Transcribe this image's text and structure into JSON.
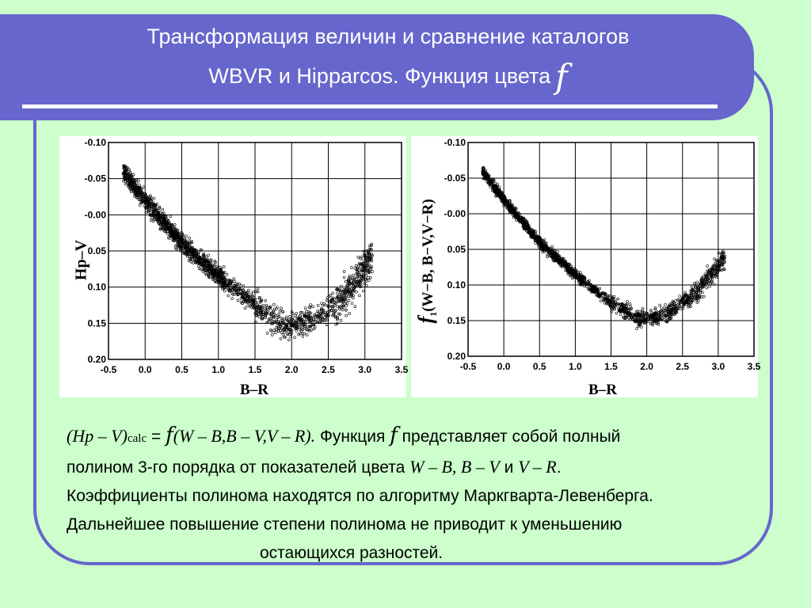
{
  "title": {
    "line1": "Трансформация величин и сравнение каталогов",
    "line2": "WBVR и Hipparcos. Функция цвета",
    "symbol": "f"
  },
  "colors": {
    "background": "#ccffcc",
    "header": "#6666cc",
    "frame": "#6666cc",
    "rule": "#ffffff"
  },
  "chart_data": [
    {
      "type": "scatter",
      "xlabel": "B–R",
      "ylabel": "Hp–V",
      "xlim": [
        -0.5,
        3.5
      ],
      "ylim": [
        0.2,
        -0.1
      ],
      "y_inverted": true,
      "grid": true,
      "x_ticks": [
        "-0.5",
        "0.0",
        "0.5",
        "1.0",
        "1.5",
        "2.0",
        "2.5",
        "3.0",
        "3.5"
      ],
      "y_ticks": [
        "-0.10",
        "-0.05",
        "-0.00",
        "0.05",
        "0.10",
        "0.15",
        "0.20"
      ],
      "trend": [
        [
          -0.3,
          -0.06
        ],
        [
          0.0,
          -0.02
        ],
        [
          0.5,
          0.04
        ],
        [
          1.0,
          0.085
        ],
        [
          1.5,
          0.125
        ],
        [
          1.9,
          0.155
        ],
        [
          2.3,
          0.145
        ],
        [
          2.7,
          0.115
        ],
        [
          3.1,
          0.06
        ]
      ],
      "scatter_sd": 0.012
    },
    {
      "type": "scatter",
      "xlabel": "B–R",
      "ylabel_symbol": "f",
      "ylabel_sub": "1",
      "ylabel_rest": "(W−B, B−V,V−R)",
      "xlim": [
        -0.5,
        3.5
      ],
      "ylim": [
        0.2,
        -0.1
      ],
      "y_inverted": true,
      "grid": true,
      "x_ticks": [
        "-0.5",
        "0.0",
        "0.5",
        "1.0",
        "1.5",
        "2.0",
        "2.5",
        "3.0",
        "3.5"
      ],
      "y_ticks": [
        "-0.10",
        "-0.05",
        "-0.00",
        "0.05",
        "0.10",
        "0.15",
        "0.20"
      ],
      "trend": [
        [
          -0.3,
          -0.06
        ],
        [
          0.0,
          -0.02
        ],
        [
          0.5,
          0.04
        ],
        [
          1.0,
          0.085
        ],
        [
          1.5,
          0.125
        ],
        [
          1.9,
          0.148
        ],
        [
          2.3,
          0.14
        ],
        [
          2.7,
          0.11
        ],
        [
          3.1,
          0.06
        ]
      ],
      "scatter_sd": 0.007
    }
  ],
  "description": {
    "formula_lhs": "(Hp – V)",
    "formula_sub": "calc",
    "formula_eq": " = ",
    "formula_f": "f",
    "formula_args": "(W – B,B – V,V – R).",
    "text1": " Функция ",
    "f2": "f",
    "text2": " представляет собой полный",
    "text3": "полином 3-го порядка от показателей цвета ",
    "ci1": "W – B",
    "comma": ", ",
    "ci2": "B – V",
    "and": " и ",
    "ci3": "V – R",
    "period": ".",
    "line3": "Коэффициенты полинома находятся по алгоритму Маркгварта-Левенберга.",
    "line4": "Дальнейшее повышение степени полинома не приводит к уменьшению",
    "line5": "остающихся разностей."
  }
}
